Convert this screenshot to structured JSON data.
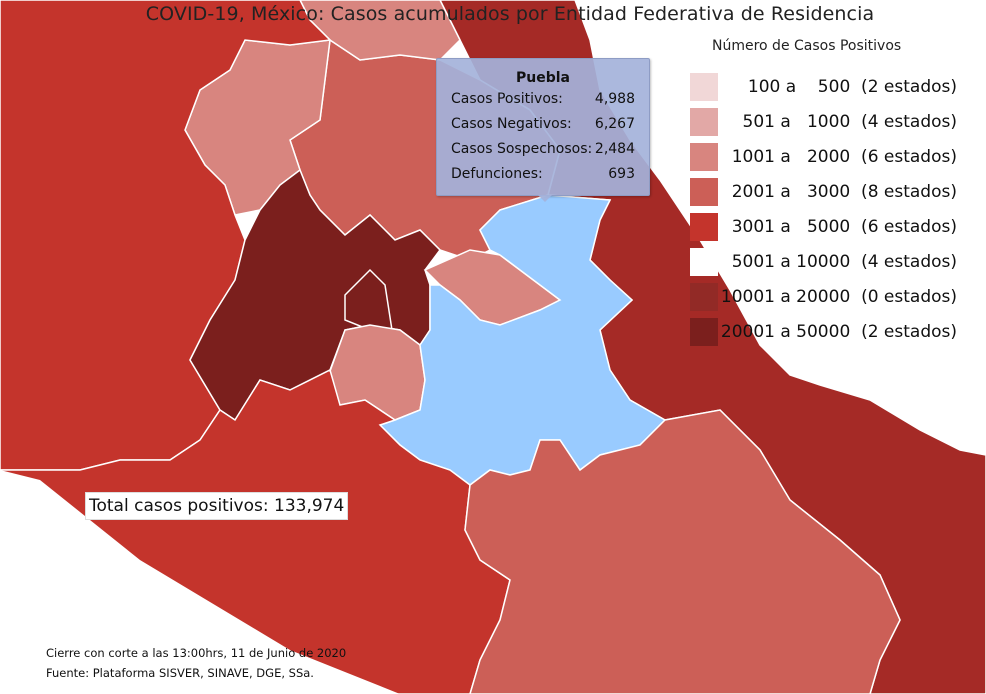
{
  "title": "COVID-19, México: Casos acumulados por Entidad Federativa de Residencia",
  "legend": {
    "title": "Número de Casos Positivos",
    "items": [
      {
        "text": "100 a    500  (2 estados)",
        "color": "#f1d7d7"
      },
      {
        "text": "501 a   1000  (4 estados)",
        "color": "#e2a8a6"
      },
      {
        "text": "1001 a   2000  (6 estados)",
        "color": "#d8857f"
      },
      {
        "text": "2001 a   3000  (8 estados)",
        "color": "#cc5f57"
      },
      {
        "text": "3001 a   5000  (6 estados)",
        "color": "#c4342c"
      },
      {
        "text": "5001 a 10000  (4 estados)",
        "color": "#ffffff"
      },
      {
        "text": "10001 a 20000  (0 estados)",
        "color": "#922a26"
      },
      {
        "text": "20001 a 50000  (2 estados)",
        "color": "#7b1f1d"
      }
    ]
  },
  "tooltip": {
    "state": "Puebla",
    "rows": [
      {
        "label": "Casos Positivos:",
        "value": "4,988"
      },
      {
        "label": "Casos Negativos:",
        "value": "6,267"
      },
      {
        "label": "Casos Sospechosos:",
        "value": "2,484"
      },
      {
        "label": "Defunciones:",
        "value": "693"
      }
    ]
  },
  "total": "Total casos positivos: 133,974",
  "footer": {
    "line1": "Cierre con corte a las 13:00hrs, 11 de Junio de 2020",
    "line2": "Fuente: Plataforma SISVER, SINAVE, DGE, SSa."
  },
  "colors": {
    "highlight": "#99cbff",
    "guerrero": "#c4342c",
    "oaxaca": "#cc5f57",
    "veracruz": "#a52a26",
    "cdmx_mexico": "#7b1f1d",
    "hidalgo": "#cc5f57",
    "queretaro": "#d8857f",
    "tlaxcala": "#d8857f",
    "morelos": "#d8857f",
    "border": "#ffffff"
  }
}
